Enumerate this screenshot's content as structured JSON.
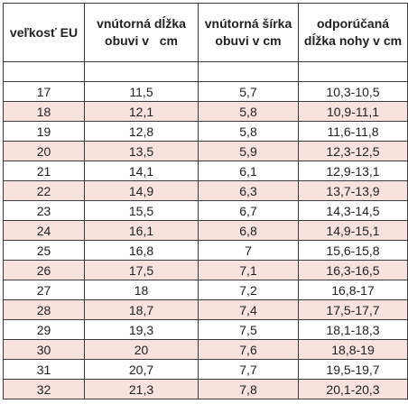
{
  "table": {
    "headers": [
      {
        "lines": [
          "veľkosť EU"
        ]
      },
      {
        "lines": [
          "vnútorná dĺžka",
          "obuvi v   cm"
        ]
      },
      {
        "lines": [
          "vnútorná šírka",
          "obuvi v cm"
        ]
      },
      {
        "lines": [
          "odporúčaná",
          "dĺžka nohy v cm"
        ]
      }
    ],
    "rows": [
      [
        "17",
        "11,5",
        "5,7",
        "10,3-10,5"
      ],
      [
        "18",
        "12,1",
        "5,8",
        "10,9-11,1"
      ],
      [
        "19",
        "12,8",
        "5,8",
        "11,6-11,8"
      ],
      [
        "20",
        "13,5",
        "5,9",
        "12,3-12,5"
      ],
      [
        "21",
        "14,1",
        "6,1",
        "12,9-13,1"
      ],
      [
        "22",
        "14,9",
        "6,3",
        "13,7-13,9"
      ],
      [
        "23",
        "15,5",
        "6,7",
        "14,3-14,5"
      ],
      [
        "24",
        "16,1",
        "6,8",
        "14,9-15,1"
      ],
      [
        "25",
        "16,8",
        "7",
        "15,6-15,8"
      ],
      [
        "26",
        "17,5",
        "7,1",
        "16,3-16,5"
      ],
      [
        "27",
        "18",
        "7,2",
        "16,8-17"
      ],
      [
        "28",
        "18,7",
        "7,4",
        "17,5-17,7"
      ],
      [
        "29",
        "19,3",
        "7,5",
        "18,1-18,3"
      ],
      [
        "30",
        "20",
        "7,6",
        "18,8-19"
      ],
      [
        "31",
        "20,7",
        "7,7",
        "19,5-19,7"
      ],
      [
        "32",
        "21,3",
        "7,8",
        "20,1-20,3"
      ]
    ]
  },
  "colors": {
    "row_highlight": "#f7e2dd",
    "row_plain": "#ffffff",
    "border": "#3a3a3a"
  }
}
